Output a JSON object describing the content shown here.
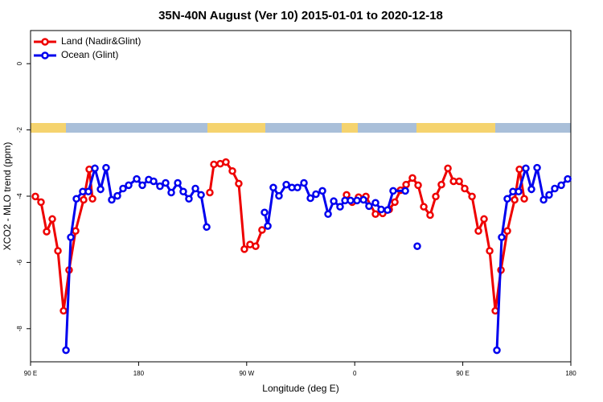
{
  "chart_data": {
    "type": "line",
    "title": "35N-40N August (Ver 10)   2015-01-01 to 2020-12-18",
    "x_label": "Longitude (deg E)",
    "y_label": "XCO2 - MLO trend (ppm)",
    "xlim": [
      90,
      540
    ],
    "ylim": [
      -9,
      1
    ],
    "xticks": [
      {
        "value": 90,
        "label": "90 E"
      },
      {
        "value": 180,
        "label": "180"
      },
      {
        "value": 270,
        "label": "90 W"
      },
      {
        "value": 360,
        "label": "0"
      },
      {
        "value": 450,
        "label": "90 E"
      },
      {
        "value": 540,
        "label": "180"
      }
    ],
    "yticks": [
      0,
      -2,
      -4,
      -6,
      -8
    ],
    "legend": "top-left",
    "series": [
      {
        "name": "Land (Nadir&Glint)",
        "color": "#ee0000",
        "x": [
          94.0,
          98.7,
          103.4,
          108.1,
          112.8,
          117.5,
          122.1,
          127.5,
          134.2,
          138.9,
          141.6,
          null,
          239.3,
          242.7,
          248.0,
          252.7,
          258.1,
          263.4,
          268.1,
          272.8,
          277.5,
          282.8,
          null,
          353.2,
          357.9,
          363.2,
          369.3,
          377.3,
          383.3,
          388.7,
          393.4,
          398.1,
          402.8,
          408.1,
          412.8,
          417.5,
          422.8,
          427.5,
          432.2,
          437.6,
          442.3,
          447.0,
          451.6,
          457.7,
          463.0,
          467.7,
          472.4,
          477.1,
          481.8,
          487.1,
          493.2,
          497.2,
          501.2
        ],
        "values": [
          -4.01,
          -4.18,
          -5.07,
          -4.69,
          -5.65,
          -7.46,
          -6.23,
          -5.05,
          -4.11,
          -3.19,
          -4.08,
          null,
          -3.89,
          -3.04,
          -3.02,
          -2.97,
          -3.24,
          -3.62,
          -5.6,
          -5.46,
          -5.51,
          -5.02,
          null,
          -3.96,
          -4.18,
          -4.03,
          -4.01,
          -4.54,
          -4.52,
          -4.4,
          -4.18,
          -3.82,
          -3.65,
          -3.45,
          -3.67,
          -4.32,
          -4.57,
          -4.01,
          -3.65,
          -3.16,
          -3.55,
          -3.55,
          -3.77,
          -4.01,
          -5.05,
          -4.69,
          -5.65,
          -7.46,
          -6.23,
          -5.05,
          -4.11,
          -3.19,
          -4.08
        ]
      },
      {
        "name": "Ocean (Glint)",
        "color": "#0000ee",
        "x": [
          119.5,
          123.5,
          128.2,
          133.5,
          138.2,
          143.6,
          148.3,
          152.9,
          157.6,
          162.3,
          167.0,
          171.7,
          178.4,
          183.1,
          188.4,
          192.5,
          197.8,
          202.5,
          207.2,
          212.6,
          217.2,
          221.9,
          227.3,
          232.0,
          236.7,
          null,
          284.9,
          287.6,
          292.2,
          296.9,
          303.0,
          307.7,
          312.3,
          317.7,
          323.1,
          327.7,
          333.1,
          337.8,
          342.5,
          347.8,
          351.9,
          356.5,
          361.9,
          367.3,
          371.9,
          377.3,
          382.0,
          387.3,
          392.0,
          402.1,
          null,
          412.1,
          null,
          478.4,
          482.4,
          487.1,
          491.8,
          496.5,
          502.5,
          507.2,
          511.9,
          517.3,
          521.9,
          526.6,
          532.0,
          537.4
        ],
        "values": [
          -8.65,
          -5.24,
          -4.08,
          -3.86,
          -3.86,
          -3.16,
          -3.79,
          -3.14,
          -4.11,
          -3.99,
          -3.77,
          -3.67,
          -3.48,
          -3.67,
          -3.5,
          -3.55,
          -3.7,
          -3.6,
          -3.89,
          -3.6,
          -3.86,
          -4.08,
          -3.77,
          -3.96,
          -4.93,
          null,
          -4.49,
          -4.9,
          -3.74,
          -3.99,
          -3.65,
          -3.74,
          -3.74,
          -3.6,
          -4.06,
          -3.94,
          -3.84,
          -4.54,
          -4.15,
          -4.32,
          -4.13,
          -4.13,
          -4.13,
          -4.11,
          -4.3,
          -4.2,
          -4.4,
          -4.42,
          -3.84,
          -3.84,
          null,
          -5.51,
          null,
          -8.65,
          -5.24,
          -4.08,
          -3.86,
          -3.86,
          -3.16,
          -3.79,
          -3.14,
          -4.11,
          -3.96,
          -3.77,
          -3.67,
          -3.48
        ]
      }
    ]
  }
}
